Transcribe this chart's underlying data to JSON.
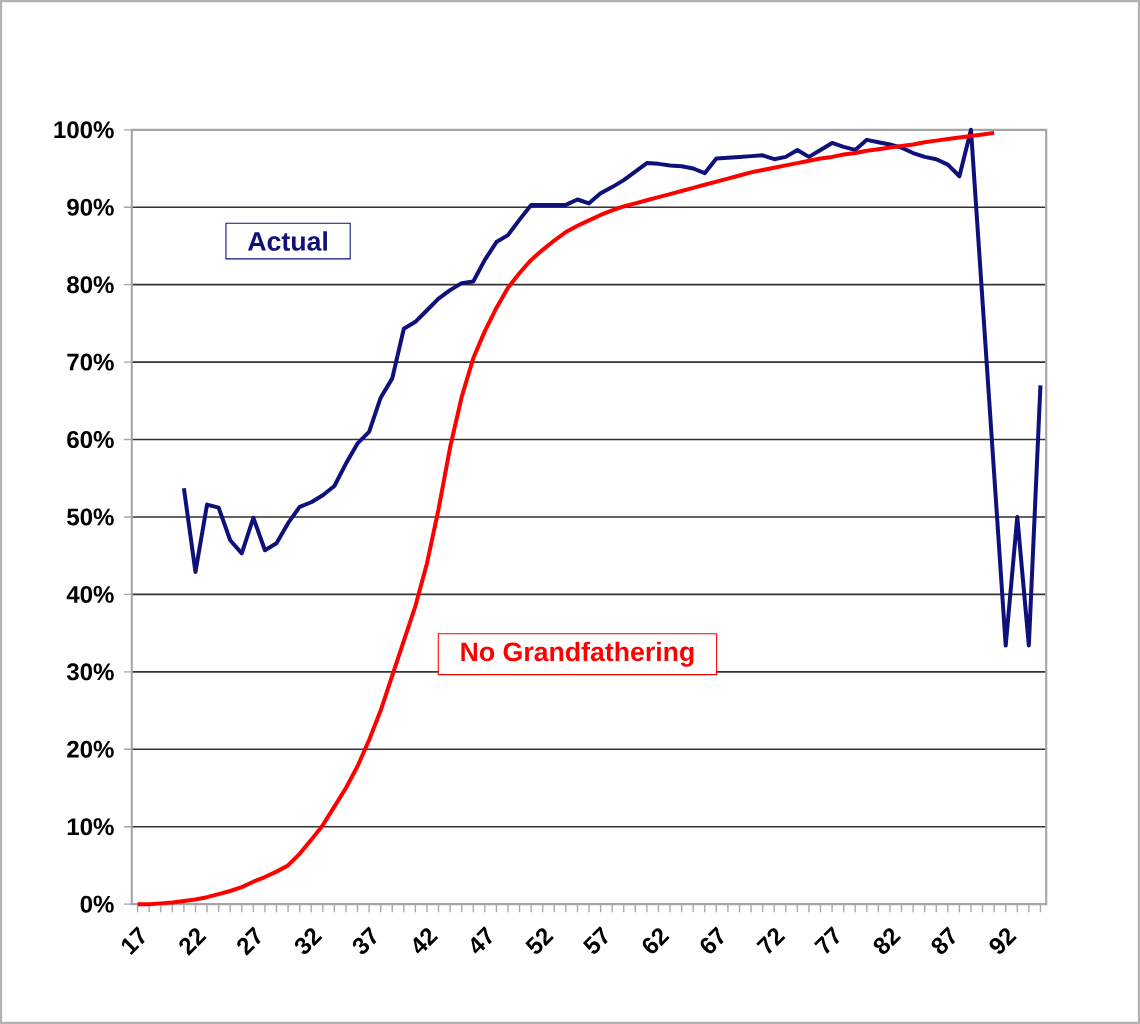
{
  "chart_data": {
    "type": "line",
    "categories": [
      "17",
      null,
      null,
      null,
      null,
      "22",
      null,
      null,
      null,
      null,
      "27",
      null,
      null,
      null,
      null,
      "32",
      null,
      null,
      null,
      null,
      "37",
      null,
      null,
      null,
      null,
      "42",
      null,
      null,
      null,
      null,
      "47",
      null,
      null,
      null,
      null,
      "52",
      null,
      null,
      null,
      null,
      "57",
      null,
      null,
      null,
      null,
      "62",
      null,
      null,
      null,
      null,
      "67",
      null,
      null,
      null,
      null,
      "72",
      null,
      null,
      null,
      null,
      "77",
      null,
      null,
      null,
      null,
      "82",
      null,
      null,
      null,
      null,
      "87",
      null,
      null,
      null,
      null,
      "92",
      null,
      null,
      null
    ],
    "series": [
      {
        "name": "Actual",
        "color": "#10107a",
        "values": [
          null,
          null,
          null,
          null,
          53.7,
          42.9,
          51.6,
          51.2,
          47,
          45.3,
          49.9,
          45.7,
          46.6,
          49.2,
          51.3,
          51.9,
          52.8,
          54,
          56.9,
          59.5,
          61,
          65.4,
          67.9,
          74.3,
          75.2,
          76.7,
          78.2,
          79.3,
          80.2,
          80.4,
          83.2,
          85.5,
          86.4,
          88.4,
          90.3,
          90.3,
          90.3,
          90.3,
          91,
          90.5,
          91.8,
          92.6,
          93.5,
          94.6,
          95.7,
          95.6,
          95.4,
          95.3,
          95,
          94.4,
          96.3,
          96.4,
          96.5,
          96.6,
          96.7,
          96.2,
          96.5,
          97.4,
          96.5,
          97.4,
          98.3,
          97.8,
          97.4,
          98.7,
          98.4,
          98.1,
          97.7,
          97,
          96.5,
          96.2,
          95.5,
          94,
          100,
          77.8,
          55.6,
          33.4,
          50,
          33.4,
          67
        ]
      },
      {
        "name": "No Grandfathering",
        "color": "#ff0000",
        "values": [
          0,
          0,
          0.1,
          0.2,
          0.4,
          0.6,
          0.9,
          1.3,
          1.7,
          2.2,
          2.9,
          3.5,
          4.2,
          5,
          6.5,
          8.3,
          10.2,
          12.6,
          15,
          17.8,
          21.2,
          25,
          29.5,
          34,
          38.5,
          44,
          51,
          59,
          65.5,
          70.5,
          74,
          77,
          79.6,
          81.5,
          83.2,
          84.5,
          85.7,
          86.8,
          87.6,
          88.3,
          89,
          89.6,
          90.1,
          90.5,
          90.9,
          91.3,
          91.7,
          92.1,
          92.5,
          92.9,
          93.3,
          93.7,
          94.1,
          94.5,
          94.8,
          95.1,
          95.4,
          95.7,
          96,
          96.3,
          96.5,
          96.8,
          97,
          97.3,
          97.5,
          97.7,
          97.9,
          98.1,
          98.4,
          98.6,
          98.8,
          99,
          99.2,
          99.4,
          99.6,
          null,
          null,
          null,
          null
        ]
      }
    ],
    "ylim": [
      0,
      100
    ],
    "yticks": [
      {
        "value": 0,
        "label": "0%"
      },
      {
        "value": 10,
        "label": "10%"
      },
      {
        "value": 20,
        "label": "20%"
      },
      {
        "value": 30,
        "label": "30%"
      },
      {
        "value": 40,
        "label": "40%"
      },
      {
        "value": 50,
        "label": "50%"
      },
      {
        "value": 60,
        "label": "60%"
      },
      {
        "value": 70,
        "label": "70%"
      },
      {
        "value": 80,
        "label": "80%"
      },
      {
        "value": 90,
        "label": "90%"
      },
      {
        "value": 100,
        "label": "100%"
      }
    ],
    "grid": "y",
    "legend": false,
    "marker": "none",
    "line_style": "solid"
  }
}
